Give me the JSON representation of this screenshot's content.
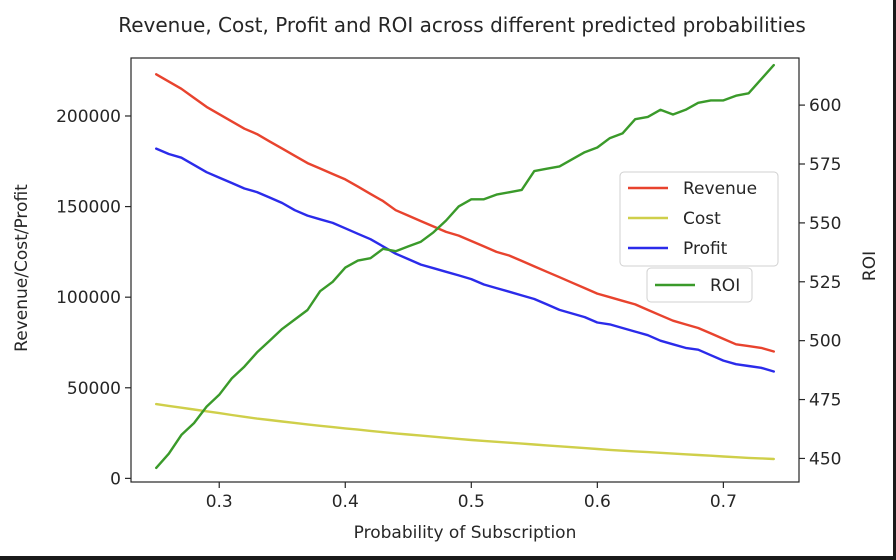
{
  "chart_data": {
    "type": "line",
    "title": "Revenue, Cost, Profit and ROI across different predicted probabilities",
    "xlabel": "Probability of Subscription",
    "ylabel_left": "Revenue/Cost/Profit",
    "ylabel_right": "ROI",
    "xlim": [
      0.23,
      0.76
    ],
    "ylim_left": [
      -2000,
      232000
    ],
    "ylim_right": [
      440,
      620
    ],
    "x_ticks": [
      0.3,
      0.4,
      0.5,
      0.6,
      0.7
    ],
    "x_tick_labels": [
      "0.3",
      "0.4",
      "0.5",
      "0.6",
      "0.7"
    ],
    "y_ticks_left": [
      0,
      50000,
      100000,
      150000,
      200000
    ],
    "y_tick_labels_left": [
      "0",
      "50000",
      "100000",
      "150000",
      "200000"
    ],
    "y_ticks_right": [
      450,
      475,
      500,
      525,
      550,
      575,
      600
    ],
    "y_tick_labels_right": [
      "450",
      "475",
      "500",
      "525",
      "550",
      "575",
      "600"
    ],
    "grid": false,
    "legend_left": {
      "placement": "center-right",
      "entries": [
        "Revenue",
        "Cost",
        "Profit"
      ]
    },
    "legend_right": {
      "placement": "center-right",
      "entries": [
        "ROI"
      ]
    },
    "x": [
      0.25,
      0.26,
      0.27,
      0.28,
      0.29,
      0.3,
      0.31,
      0.32,
      0.33,
      0.34,
      0.35,
      0.36,
      0.37,
      0.38,
      0.39,
      0.4,
      0.41,
      0.42,
      0.43,
      0.44,
      0.45,
      0.46,
      0.47,
      0.48,
      0.49,
      0.5,
      0.51,
      0.52,
      0.53,
      0.54,
      0.55,
      0.56,
      0.57,
      0.58,
      0.59,
      0.6,
      0.61,
      0.62,
      0.63,
      0.64,
      0.65,
      0.66,
      0.67,
      0.68,
      0.69,
      0.7,
      0.71,
      0.72,
      0.73,
      0.74
    ],
    "series": [
      {
        "name": "Revenue",
        "axis": "left",
        "color": "#e8432e",
        "values": [
          223000,
          219000,
          215000,
          210000,
          205000,
          201000,
          197000,
          193000,
          190000,
          186000,
          182000,
          178000,
          174000,
          171000,
          168000,
          165000,
          161000,
          157000,
          153000,
          148000,
          145000,
          142000,
          139000,
          136000,
          134000,
          131000,
          128000,
          125000,
          123000,
          120000,
          117000,
          114000,
          111000,
          108000,
          105000,
          102000,
          100000,
          98000,
          96000,
          93000,
          90000,
          87000,
          85000,
          83000,
          80000,
          77000,
          74000,
          73000,
          72000,
          70000
        ]
      },
      {
        "name": "Cost",
        "axis": "left",
        "color": "#cfcf4a",
        "values": [
          41000,
          40000,
          39000,
          38000,
          37000,
          36000,
          35000,
          34000,
          33000,
          32200,
          31400,
          30600,
          29800,
          29000,
          28300,
          27600,
          26900,
          26200,
          25500,
          24800,
          24200,
          23600,
          23000,
          22400,
          21800,
          21200,
          20700,
          20200,
          19700,
          19200,
          18700,
          18200,
          17700,
          17200,
          16700,
          16200,
          15700,
          15300,
          14900,
          14500,
          14100,
          13700,
          13300,
          12900,
          12500,
          12100,
          11700,
          11300,
          11000,
          10700
        ]
      },
      {
        "name": "Profit",
        "axis": "left",
        "color": "#2b2bea",
        "values": [
          182000,
          179000,
          177000,
          173000,
          169000,
          166000,
          163000,
          160000,
          158000,
          155000,
          152000,
          148000,
          145000,
          143000,
          141000,
          138000,
          135000,
          132000,
          128000,
          124000,
          121000,
          118000,
          116000,
          114000,
          112000,
          110000,
          107000,
          105000,
          103000,
          101000,
          99000,
          96000,
          93000,
          91000,
          89000,
          86000,
          85000,
          83000,
          81000,
          79000,
          76000,
          74000,
          72000,
          71000,
          68000,
          65000,
          63000,
          62000,
          61000,
          59000
        ]
      },
      {
        "name": "ROI",
        "axis": "right",
        "color": "#3a9a2a",
        "values": [
          446,
          452,
          460,
          465,
          472,
          477,
          484,
          489,
          495,
          500,
          505,
          509,
          513,
          521,
          525,
          531,
          534,
          535,
          539,
          538,
          540,
          542,
          546,
          551,
          557,
          560,
          560,
          562,
          563,
          564,
          572,
          573,
          574,
          577,
          580,
          582,
          586,
          588,
          594,
          595,
          598,
          596,
          598,
          601,
          602,
          602,
          604,
          605,
          611,
          617
        ]
      }
    ]
  }
}
